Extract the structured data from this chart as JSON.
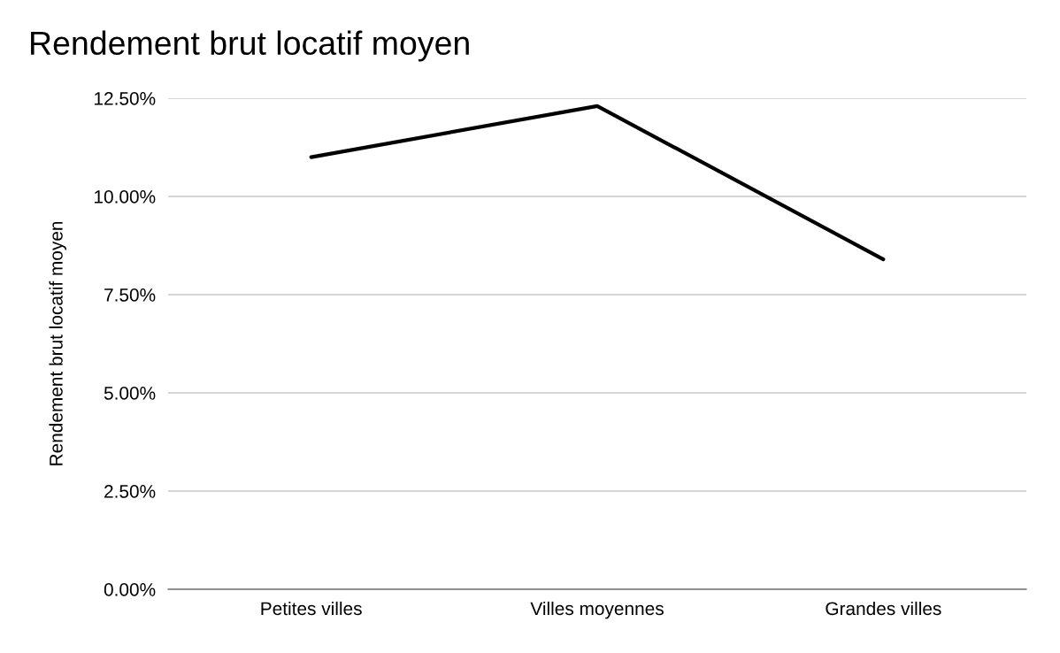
{
  "chart_data": {
    "type": "line",
    "title": "Rendement brut locatif moyen",
    "ylabel": "Rendement brut locatif moyen",
    "categories": [
      "Petites villes",
      "Villes moyennes",
      "Grandes villes"
    ],
    "series": [
      {
        "color": "#000000",
        "values": [
          11.0,
          12.3,
          8.4
        ]
      }
    ],
    "ylim": [
      0,
      12.5
    ],
    "yticks": [
      {
        "value": 0,
        "label": "0.00%"
      },
      {
        "value": 2.5,
        "label": "2.50%"
      },
      {
        "value": 5,
        "label": "5.00%"
      },
      {
        "value": 7.5,
        "label": "7.50%"
      },
      {
        "value": 10,
        "label": "10.00%"
      },
      {
        "value": 12.5,
        "label": "12.50%"
      }
    ],
    "grid": "y",
    "legend": false,
    "marker": "none",
    "line_style": "solid"
  }
}
